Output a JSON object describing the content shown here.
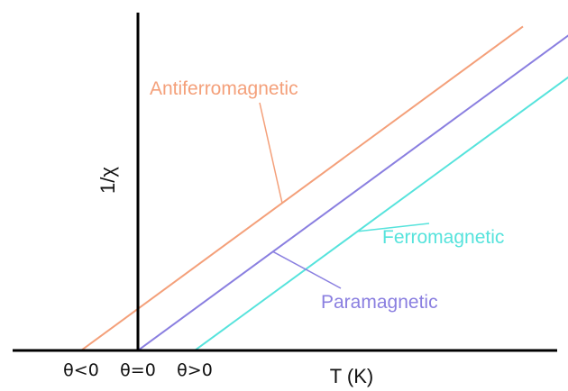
{
  "chart_data": {
    "type": "line",
    "title": "",
    "xlabel": "T (K)",
    "ylabel": "1/χ",
    "grid": false,
    "legend": "inline labels",
    "xlim": [
      -1.0,
      7.0
    ],
    "ylim": [
      0,
      6.5
    ],
    "x_ticks": [
      {
        "value": -0.9,
        "label": "θ<0"
      },
      {
        "value": 0.0,
        "label": "θ=0"
      },
      {
        "value": 0.9,
        "label": "θ>0"
      }
    ],
    "series": [
      {
        "name": "Antiferromagnetic",
        "color": "#f4a07a",
        "x": [
          -0.9,
          6.1
        ],
        "y": [
          0,
          6.2
        ]
      },
      {
        "name": "Paramagnetic",
        "color": "#8a7fe0",
        "x": [
          0.0,
          6.9
        ],
        "y": [
          0,
          6.1
        ]
      },
      {
        "name": "Ferromagnetic",
        "color": "#56e3dc",
        "x": [
          0.9,
          6.9
        ],
        "y": [
          0,
          5.3
        ]
      }
    ]
  }
}
